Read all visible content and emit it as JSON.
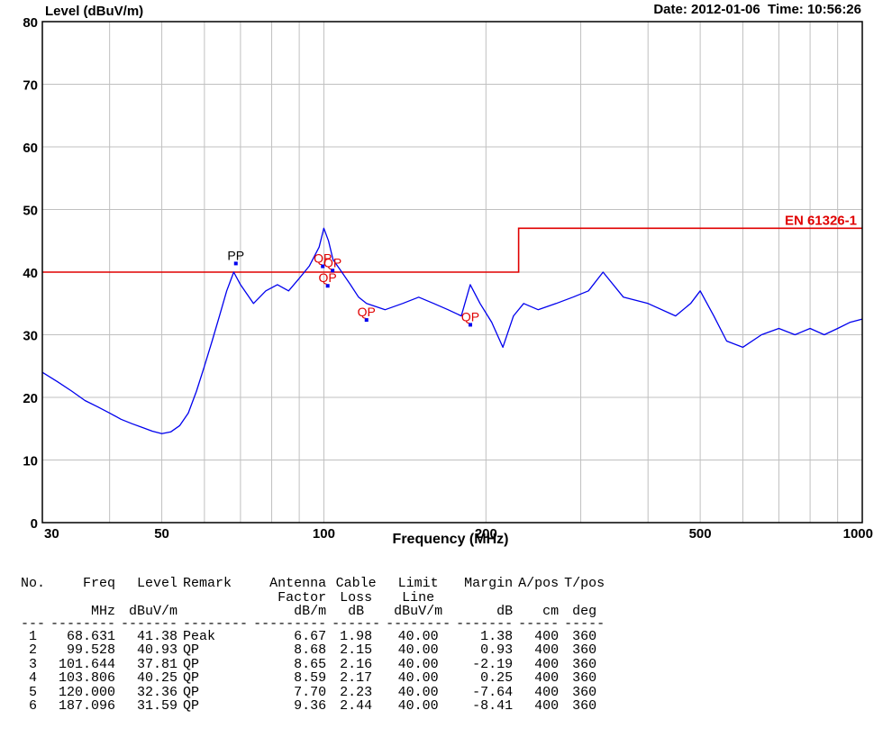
{
  "header": {
    "ylabel": "Level (dBuV/m)",
    "date_time": "Date: 2012-01-06  Time: 10:56:26"
  },
  "chart_data": {
    "type": "line",
    "xlabel": "Frequency (MHz)",
    "ylabel": "Level (dBuV/m)",
    "x_scale": "log",
    "xlim": [
      30,
      1000
    ],
    "ylim": [
      0,
      80
    ],
    "grid": true,
    "x_ticks": [
      30,
      50,
      100,
      200,
      500,
      1000
    ],
    "y_ticks": [
      0,
      10,
      20,
      30,
      40,
      50,
      60,
      70,
      80
    ],
    "limit_line": {
      "name": "EN 61326-1",
      "color": "#e00000",
      "points": [
        [
          30,
          40
        ],
        [
          230,
          40
        ],
        [
          230,
          47
        ],
        [
          1000,
          47
        ]
      ]
    },
    "series": [
      {
        "color": "#0000ee",
        "x": [
          30,
          32,
          34,
          36,
          38,
          40,
          42,
          44,
          46,
          48,
          50,
          52,
          54,
          56,
          58,
          60,
          62,
          64,
          66,
          68,
          70,
          74,
          78,
          82,
          86,
          90,
          94,
          98,
          100,
          102,
          104,
          108,
          112,
          116,
          120,
          130,
          140,
          150,
          160,
          170,
          180,
          187,
          195,
          205,
          215,
          225,
          235,
          250,
          270,
          290,
          310,
          330,
          360,
          400,
          450,
          480,
          500,
          530,
          560,
          600,
          650,
          700,
          750,
          800,
          850,
          900,
          950,
          1000
        ],
        "y": [
          24,
          22.5,
          21,
          19.5,
          18.5,
          17.5,
          16.5,
          15.8,
          15.2,
          14.6,
          14.2,
          14.5,
          15.5,
          17.5,
          21,
          25,
          29,
          33,
          37,
          40,
          38,
          35,
          37,
          38,
          37,
          39,
          41,
          44,
          47,
          45,
          42,
          40,
          38,
          36,
          35,
          34,
          35,
          36,
          35,
          34,
          33,
          38,
          35,
          32,
          28,
          33,
          35,
          34,
          35,
          36,
          37,
          40,
          36,
          35,
          33,
          35,
          37,
          33,
          29,
          28,
          30,
          31,
          30,
          31,
          30,
          31,
          32,
          32.5
        ]
      }
    ],
    "markers": [
      {
        "label": "PP",
        "color": "#000000",
        "x": 68.631,
        "y": 41.38
      },
      {
        "label": "QP",
        "color": "#e00000",
        "x": 99.528,
        "y": 40.93
      },
      {
        "label": "QP",
        "color": "#e00000",
        "x": 101.644,
        "y": 37.81
      },
      {
        "label": "QP",
        "color": "#e00000",
        "x": 103.806,
        "y": 40.25
      },
      {
        "label": "QP",
        "color": "#e00000",
        "x": 120.0,
        "y": 32.36
      },
      {
        "label": "QP",
        "color": "#e00000",
        "x": 187.096,
        "y": 31.59
      }
    ]
  },
  "table": {
    "header1": [
      "No.",
      "Freq",
      "Level",
      "Remark",
      "Antenna",
      "Cable",
      "Limit",
      "Margin",
      "A/pos",
      "T/pos"
    ],
    "header2": [
      "",
      "",
      "",
      "",
      "Factor",
      "Loss",
      "Line",
      "",
      "",
      ""
    ],
    "units": [
      "",
      "MHz",
      "dBuV/m",
      "",
      "dB/m",
      "dB",
      "dBuV/m",
      "dB",
      "cm",
      "deg"
    ],
    "dashes": [
      "---",
      "--------",
      "-------",
      "--------",
      "---------",
      "------",
      "--------",
      "-------",
      "-----",
      "-----"
    ],
    "rows": [
      [
        "1",
        "68.631",
        "41.38",
        "Peak",
        "6.67",
        "1.98",
        "40.00",
        "1.38",
        "400",
        "360"
      ],
      [
        "2",
        "99.528",
        "40.93",
        "QP",
        "8.68",
        "2.15",
        "40.00",
        "0.93",
        "400",
        "360"
      ],
      [
        "3",
        "101.644",
        "37.81",
        "QP",
        "8.65",
        "2.16",
        "40.00",
        "-2.19",
        "400",
        "360"
      ],
      [
        "4",
        "103.806",
        "40.25",
        "QP",
        "8.59",
        "2.17",
        "40.00",
        "0.25",
        "400",
        "360"
      ],
      [
        "5",
        "120.000",
        "32.36",
        "QP",
        "7.70",
        "2.23",
        "40.00",
        "-7.64",
        "400",
        "360"
      ],
      [
        "6",
        "187.096",
        "31.59",
        "QP",
        "9.36",
        "2.44",
        "40.00",
        "-8.41",
        "400",
        "360"
      ]
    ]
  }
}
